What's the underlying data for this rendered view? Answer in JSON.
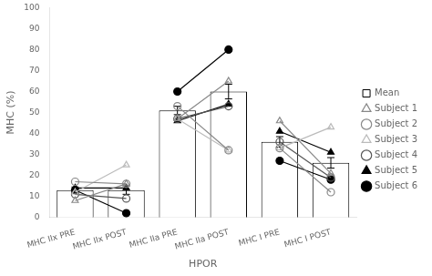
{
  "chart_data": {
    "type": "bar",
    "xlabel": "HPOR",
    "ylabel": "MHC (%)",
    "categories": [
      "MHC IIx PRE",
      "MHC IIx POST",
      "MHC IIa PRE",
      "MHC IIa POST",
      "MHC I PRE",
      "MHC I POST"
    ],
    "ylim": [
      0,
      100
    ],
    "yticks": [
      0,
      10,
      20,
      30,
      40,
      50,
      60,
      70,
      80,
      90,
      100
    ],
    "grid": false,
    "legend": "right",
    "series": [
      {
        "name": "Mean",
        "type": "bar",
        "color": "#ffffff",
        "values": [
          13,
          13,
          51,
          60,
          36,
          26
        ],
        "errors": [
          1.5,
          2.0,
          2.0,
          3.5,
          2.5,
          2.5
        ]
      },
      {
        "name": "Subject 1",
        "type": "line",
        "color": "#888888",
        "marker": "triangle_open",
        "line_style": "paired",
        "values": [
          8,
          16,
          47,
          65,
          46,
          21
        ]
      },
      {
        "name": "Subject 2",
        "type": "line",
        "color": "#888888",
        "marker": "circle_open",
        "line_style": "paired",
        "values": [
          17,
          16,
          53,
          32,
          33,
          12
        ]
      },
      {
        "name": "Subject 3",
        "type": "line",
        "color": "#bbbbbb",
        "marker": "triangle_open",
        "line_style": "paired",
        "values": [
          12,
          25,
          47,
          32,
          33,
          43
        ]
      },
      {
        "name": "Subject 4",
        "type": "line",
        "color": "#555555",
        "marker": "circle_open",
        "line_style": "paired",
        "values": [
          11,
          9,
          47,
          53,
          36,
          19
        ]
      },
      {
        "name": "Subject 5",
        "type": "line",
        "color": "#000000",
        "marker": "triangle",
        "line_style": "paired",
        "values": [
          14,
          14,
          46,
          54,
          41,
          31
        ]
      },
      {
        "name": "Subject 6",
        "type": "line",
        "color": "#000000",
        "marker": "circle",
        "line_style": "paired",
        "values": [
          13,
          2,
          60,
          80,
          27,
          18
        ]
      }
    ]
  }
}
